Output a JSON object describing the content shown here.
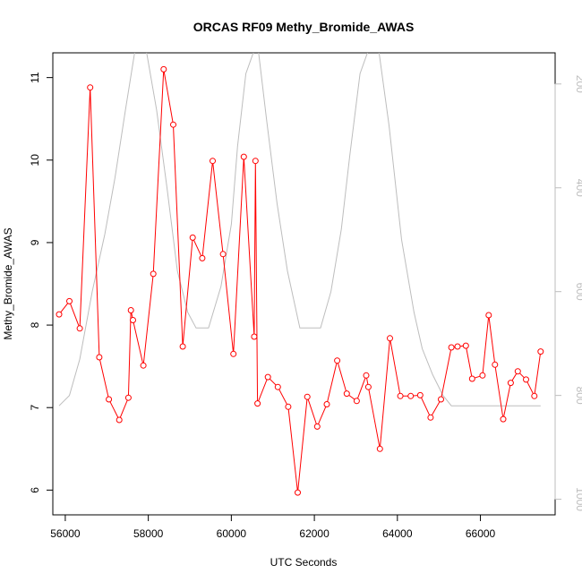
{
  "chart_data": {
    "type": "line",
    "title": "ORCAS RF09 Methy_Bromide_AWAS",
    "xlabel": "UTC Seconds",
    "ylabel": "Methy_Bromide_AWAS",
    "xlim": [
      55700,
      67800
    ],
    "ylim": [
      5.7,
      11.3
    ],
    "y2lim": [
      1030,
      140
    ],
    "xticks": [
      56000,
      58000,
      60000,
      62000,
      64000,
      66000
    ],
    "yticks": [
      6,
      7,
      8,
      9,
      10,
      11
    ],
    "y2ticks": [
      200,
      400,
      600,
      800,
      1000
    ],
    "x_tick_labels": [
      "56000",
      "58000",
      "60000",
      "62000",
      "64000",
      "66000"
    ],
    "y_tick_labels": [
      "6",
      "7",
      "8",
      "9",
      "10",
      "11"
    ],
    "y2_tick_labels": [
      "200",
      "400",
      "600",
      "800",
      "1000"
    ],
    "grid": false,
    "colors": {
      "series": "#ff0000",
      "secondary": "#bdbdbd"
    },
    "series": [
      {
        "x": [
          55850,
          56100,
          56350,
          56600,
          56820,
          57050,
          57300,
          57520,
          57580,
          57630,
          57880,
          58120,
          58370,
          58600,
          58830,
          59070,
          59300,
          59550,
          59800,
          60050,
          60300,
          60550,
          60580,
          60630,
          60880,
          61120,
          61370,
          61600,
          61830,
          62070,
          62300,
          62550,
          62780,
          63020,
          63250,
          63300,
          63580,
          63820,
          64070,
          64320,
          64550,
          64800,
          65050,
          65300,
          65450,
          65650,
          65800,
          66050,
          66200,
          66350,
          66550,
          66730,
          66900,
          67100,
          67300,
          67450
        ],
        "y": [
          8.13,
          8.29,
          7.96,
          10.88,
          7.61,
          7.1,
          6.85,
          7.12,
          8.18,
          8.06,
          7.51,
          8.62,
          11.1,
          10.43,
          7.74,
          9.06,
          8.81,
          9.99,
          8.86,
          7.65,
          10.04,
          7.86,
          9.99,
          7.05,
          7.37,
          7.25,
          7.01,
          5.97,
          7.13,
          6.77,
          7.04,
          7.57,
          7.17,
          7.08,
          7.39,
          7.25,
          6.5,
          7.84,
          7.14,
          7.14,
          7.15,
          6.88,
          7.1,
          7.73,
          7.74,
          7.75,
          7.35,
          7.39,
          8.12,
          7.52,
          6.86,
          7.3,
          7.44,
          7.34,
          7.14,
          7.68
        ]
      },
      {
        "axis": "right",
        "x": [
          55850,
          56100,
          56350,
          56650,
          56950,
          57200,
          57450,
          57680,
          57950,
          58200,
          58450,
          58700,
          58950,
          59150,
          59450,
          59750,
          60000,
          60150,
          60350,
          60550,
          60650,
          60850,
          61100,
          61350,
          61650,
          61900,
          62150,
          62400,
          62650,
          62850,
          63100,
          63300,
          63550,
          63800,
          64100,
          64400,
          64600,
          64850,
          65100,
          65300,
          66000,
          66500,
          67000,
          67450
        ],
        "y": [
          820,
          800,
          730,
          600,
          490,
          380,
          250,
          135,
          135,
          250,
          400,
          560,
          640,
          670,
          670,
          590,
          470,
          320,
          180,
          135,
          135,
          270,
          430,
          560,
          670,
          670,
          670,
          600,
          480,
          340,
          180,
          135,
          135,
          280,
          500,
          640,
          710,
          760,
          800,
          820,
          820,
          820,
          820,
          820
        ]
      }
    ]
  }
}
